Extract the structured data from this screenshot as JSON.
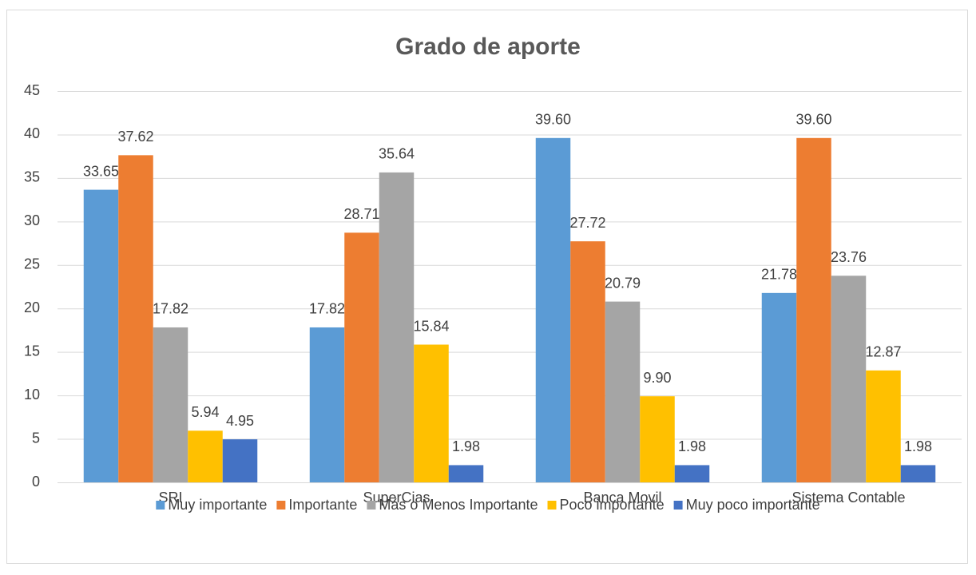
{
  "chart_data": {
    "type": "bar",
    "title": "Grado de aporte",
    "categories": [
      "SRI",
      "SuperCias",
      "Banca Movil",
      "Sistema Contable"
    ],
    "series": [
      {
        "name": "Muy importante",
        "color": "#5b9bd5",
        "values": [
          33.65,
          17.82,
          39.6,
          21.78
        ],
        "value_labels": [
          "33.65",
          "17.82",
          "39.60",
          "21.78"
        ]
      },
      {
        "name": "Importante",
        "color": "#ed7d31",
        "values": [
          37.62,
          28.71,
          27.72,
          39.6
        ],
        "value_labels": [
          "37.62",
          "28.71",
          "27.72",
          "39.60"
        ]
      },
      {
        "name": "Más o Menos Importante",
        "color": "#a5a5a5",
        "values": [
          17.82,
          35.64,
          20.79,
          23.76
        ],
        "value_labels": [
          "17.82",
          "35.64",
          "20.79",
          "23.76"
        ]
      },
      {
        "name": "Poco importante",
        "color": "#ffc000",
        "values": [
          5.94,
          15.84,
          9.9,
          12.87
        ],
        "value_labels": [
          "5.94",
          "15.84",
          "9.90",
          "12.87"
        ]
      },
      {
        "name": "Muy poco importante",
        "color": "#4472c4",
        "values": [
          4.95,
          1.98,
          1.98,
          1.98
        ],
        "value_labels": [
          "4.95",
          "1.98",
          "1.98",
          "1.98"
        ]
      }
    ],
    "ylim": [
      0,
      45
    ],
    "yticks": [
      0,
      5,
      10,
      15,
      20,
      25,
      30,
      35,
      40,
      45
    ],
    "grid": true,
    "legend": "bottom"
  }
}
